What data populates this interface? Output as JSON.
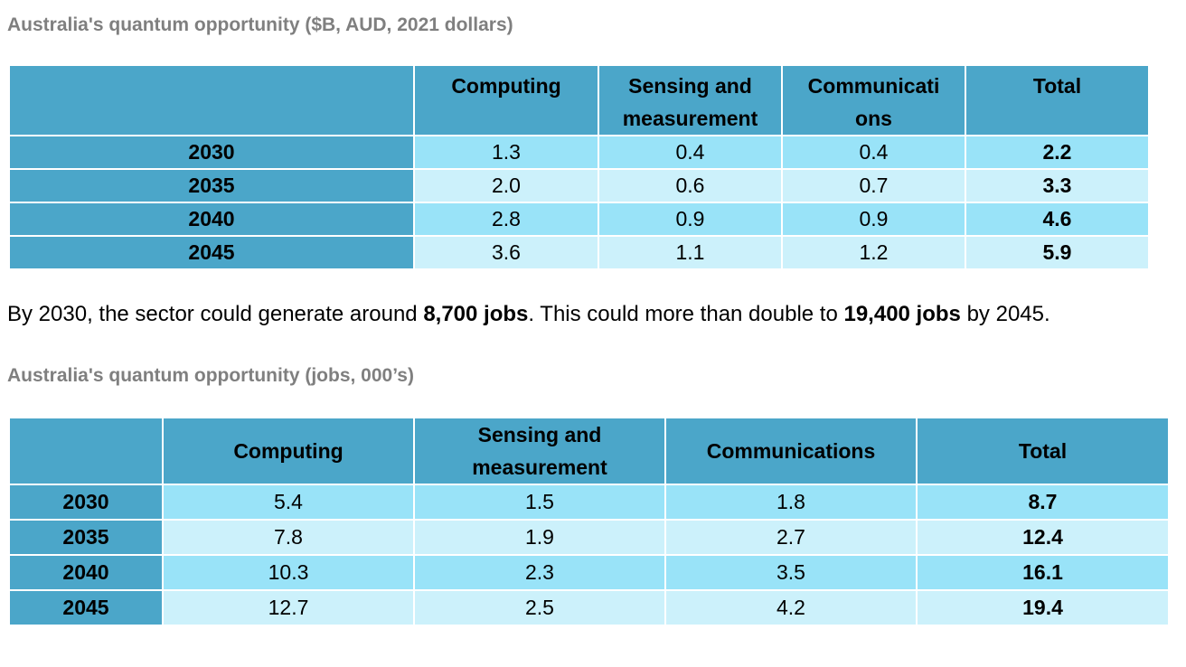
{
  "section1": {
    "caption": "Australia's quantum opportunity ($B, AUD, 2021 dollars)",
    "headers": [
      "",
      "Computing",
      "Sensing and\nmeasurement",
      "Communicati\nons",
      "Total"
    ],
    "rows": [
      {
        "year": "2030",
        "computing": "1.3",
        "sensing": "0.4",
        "communications": "0.4",
        "total": "2.2"
      },
      {
        "year": "2035",
        "computing": "2.0",
        "sensing": "0.6",
        "communications": "0.7",
        "total": "3.3"
      },
      {
        "year": "2040",
        "computing": "2.8",
        "sensing": "0.9",
        "communications": "0.9",
        "total": "4.6"
      },
      {
        "year": "2045",
        "computing": "3.6",
        "sensing": "1.1",
        "communications": "1.2",
        "total": "5.9"
      }
    ]
  },
  "paragraph": {
    "part1": "By 2030, the sector could generate around ",
    "bold1": "8,700 jobs",
    "part2": ". This could more than double to ",
    "bold2": "19,400 jobs",
    "part3": " by 2045."
  },
  "section2": {
    "caption": "Australia's quantum opportunity (jobs, 000’s)",
    "headers": [
      "",
      "Computing",
      "Sensing and\nmeasurement",
      "Communications",
      "Total"
    ],
    "rows": [
      {
        "year": "2030",
        "computing": "5.4",
        "sensing": "1.5",
        "communications": "1.8",
        "total": "8.7"
      },
      {
        "year": "2035",
        "computing": "7.8",
        "sensing": "1.9",
        "communications": "2.7",
        "total": "12.4"
      },
      {
        "year": "2040",
        "computing": "10.3",
        "sensing": "2.3",
        "communications": "3.5",
        "total": "16.1"
      },
      {
        "year": "2045",
        "computing": "12.7",
        "sensing": "2.5",
        "communications": "4.2",
        "total": "19.4"
      }
    ]
  },
  "colors": {
    "header_bg": "#4ba6c9",
    "row_odd_bg": "#99e3f8",
    "row_even_bg": "#ccf1fb",
    "caption_text": "#7f7f7f"
  }
}
